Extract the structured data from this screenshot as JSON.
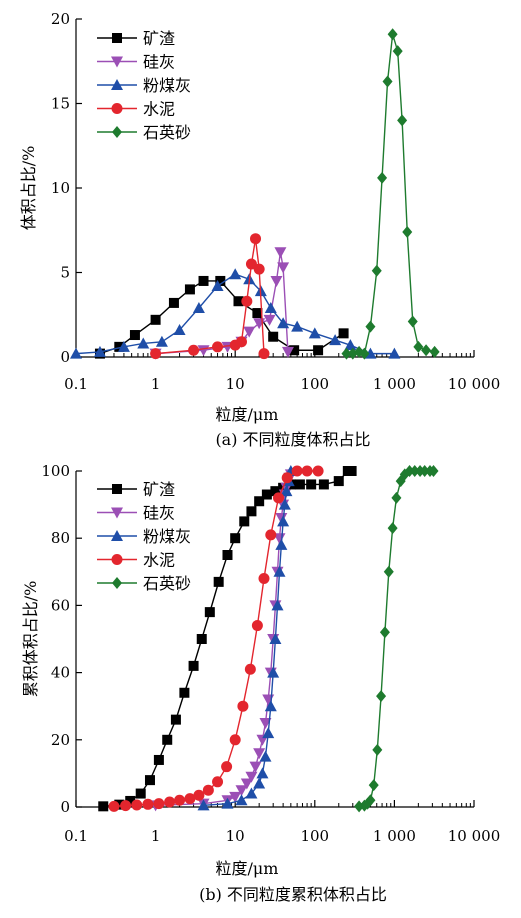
{
  "chart_data": [
    {
      "type": "line",
      "caption": "(a) 不同粒度体积占比",
      "xlabel": "粒度/μm",
      "ylabel": "体积占比/%",
      "x_scale": "log",
      "xlim": [
        0.1,
        10000
      ],
      "ylim": [
        0,
        20
      ],
      "x_tick_labels": [
        "0.1",
        "1",
        "10",
        "100",
        "1 000",
        "10 000"
      ],
      "x_tick_values": [
        0.1,
        1,
        10,
        100,
        1000,
        10000
      ],
      "y_ticks": [
        0,
        5,
        10,
        15,
        20
      ],
      "legend_position": "top-left",
      "series": [
        {
          "name": "矿渣",
          "color": "#000000",
          "marker": "square",
          "x": [
            0.2,
            0.35,
            0.55,
            1.0,
            1.7,
            2.7,
            4.0,
            6.5,
            11,
            19,
            30,
            55,
            110,
            230
          ],
          "y": [
            0.2,
            0.6,
            1.3,
            2.2,
            3.2,
            4.0,
            4.5,
            4.5,
            3.3,
            2.6,
            1.2,
            0.4,
            0.4,
            1.4
          ]
        },
        {
          "name": "硅灰",
          "color": "#9b4fb5",
          "marker": "triangle-down",
          "x": [
            1.0,
            4.0,
            8.0,
            12,
            15,
            20,
            27,
            33,
            37,
            40,
            46
          ],
          "y": [
            0.2,
            0.4,
            0.6,
            0.9,
            1.5,
            2.0,
            2.2,
            4.5,
            6.2,
            5.3,
            0.3
          ]
        },
        {
          "name": "粉煤灰",
          "color": "#1f4ea8",
          "marker": "triangle-up",
          "x": [
            0.1,
            0.2,
            0.4,
            0.7,
            1.2,
            2.0,
            3.5,
            6.0,
            10,
            15,
            21,
            28,
            40,
            60,
            100,
            180,
            280,
            500,
            1000
          ],
          "y": [
            0.2,
            0.3,
            0.6,
            0.8,
            0.9,
            1.6,
            2.9,
            4.2,
            4.9,
            4.6,
            3.9,
            2.9,
            2.0,
            1.8,
            1.4,
            1.0,
            0.7,
            0.2,
            0.2
          ]
        },
        {
          "name": "水泥",
          "color": "#e3262e",
          "marker": "circle",
          "x": [
            1.0,
            3.0,
            6.0,
            10,
            12,
            14,
            16,
            18,
            20,
            23
          ],
          "y": [
            0.2,
            0.4,
            0.6,
            0.7,
            0.9,
            3.3,
            5.5,
            7.0,
            5.2,
            0.2
          ]
        },
        {
          "name": "石英砂",
          "color": "#1e7b2e",
          "marker": "diamond",
          "x": [
            250,
            300,
            360,
            420,
            500,
            600,
            700,
            820,
            950,
            1100,
            1250,
            1450,
            1700,
            2000,
            2500,
            3200
          ],
          "y": [
            0.2,
            0.2,
            0.3,
            0.2,
            1.8,
            5.1,
            10.6,
            16.3,
            19.1,
            18.1,
            14.0,
            7.4,
            2.1,
            0.6,
            0.4,
            0.3
          ]
        }
      ]
    },
    {
      "type": "line",
      "caption": "(b) 不同粒度累积体积占比",
      "xlabel": "粒度/μm",
      "ylabel": "累积体积占比/%",
      "x_scale": "log",
      "xlim": [
        0.1,
        10000
      ],
      "ylim": [
        0,
        100
      ],
      "x_tick_labels": [
        "0.1",
        "1",
        "10",
        "100",
        "1 000",
        "10 000"
      ],
      "x_tick_values": [
        0.1,
        1,
        10,
        100,
        1000,
        10000
      ],
      "y_ticks": [
        0,
        20,
        40,
        60,
        80,
        100
      ],
      "legend_position": "top-left",
      "series": [
        {
          "name": "矿渣",
          "color": "#000000",
          "marker": "square",
          "x": [
            0.22,
            0.35,
            0.48,
            0.65,
            0.85,
            1.1,
            1.4,
            1.8,
            2.3,
            3.0,
            3.8,
            4.8,
            6.2,
            8.0,
            10,
            13,
            16,
            20,
            25,
            32,
            40,
            50,
            65,
            90,
            130,
            200,
            260,
            290
          ],
          "y": [
            0.2,
            0.7,
            1.8,
            4.0,
            8.0,
            14,
            20,
            26,
            34,
            42,
            50,
            58,
            67,
            75,
            80,
            85,
            88,
            91,
            93,
            94,
            95,
            96,
            96,
            96,
            96,
            97,
            100,
            100
          ]
        },
        {
          "name": "硅灰",
          "color": "#9b4fb5",
          "marker": "triangle-down",
          "x": [
            1.0,
            4.0,
            8.0,
            10,
            12,
            14,
            16,
            18,
            20,
            22,
            24,
            26,
            28,
            30,
            32,
            34,
            36,
            38,
            40,
            42,
            44,
            46,
            48,
            50
          ],
          "y": [
            0.5,
            1,
            2,
            3,
            5,
            7,
            9,
            12,
            16,
            20,
            25,
            32,
            40,
            50,
            60,
            70,
            80,
            86,
            90,
            93,
            95,
            97,
            98,
            99
          ]
        },
        {
          "name": "粉煤灰",
          "color": "#1f4ea8",
          "marker": "triangle-up",
          "x": [
            4.0,
            8.0,
            12,
            16,
            20,
            22,
            24,
            26,
            28,
            30,
            32,
            34,
            36,
            38,
            40,
            42,
            44,
            47,
            50
          ],
          "y": [
            0.5,
            1,
            2,
            4,
            7,
            10,
            15,
            22,
            30,
            40,
            50,
            60,
            70,
            78,
            85,
            90,
            94,
            97,
            100
          ]
        },
        {
          "name": "水泥",
          "color": "#e3262e",
          "marker": "circle",
          "x": [
            0.3,
            0.42,
            0.58,
            0.8,
            1.1,
            1.5,
            2.0,
            2.7,
            3.5,
            4.6,
            6.0,
            7.8,
            10,
            12.5,
            15.5,
            19,
            23,
            28,
            35,
            45,
            60,
            80,
            110
          ],
          "y": [
            0.2,
            0.4,
            0.6,
            0.8,
            1.0,
            1.5,
            2.0,
            2.5,
            3.5,
            5,
            7.5,
            12,
            20,
            30,
            41,
            54,
            68,
            81,
            92,
            98,
            100,
            100,
            100
          ]
        },
        {
          "name": "石英砂",
          "color": "#1e7b2e",
          "marker": "diamond",
          "x": [
            360,
            420,
            460,
            500,
            550,
            610,
            680,
            760,
            850,
            950,
            1060,
            1200,
            1350,
            1550,
            1800,
            2100,
            2400,
            2800,
            3100
          ],
          "y": [
            0.2,
            0.4,
            1.0,
            2.0,
            6.5,
            17,
            33,
            52,
            70,
            83,
            92,
            97,
            99,
            100,
            100,
            100,
            100,
            100,
            100
          ]
        }
      ]
    }
  ]
}
